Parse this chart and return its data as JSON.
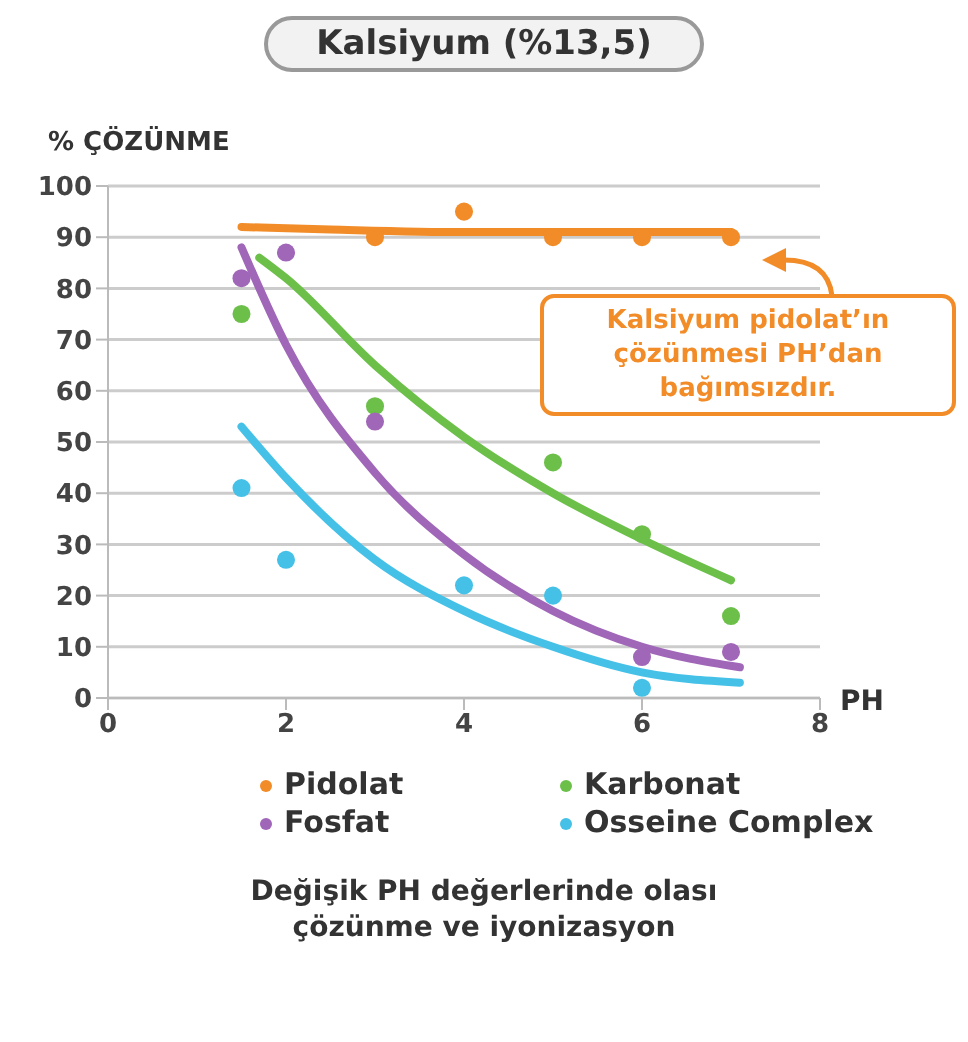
{
  "chart_data": {
    "type": "scatter",
    "title": "Kalsiyum (%13,5)",
    "ylabel": "% ÇÖZÜNME",
    "xlabel": "PH",
    "xlim": [
      0,
      8
    ],
    "xticks": [
      0,
      2,
      4,
      6,
      8
    ],
    "ylim": [
      0,
      100
    ],
    "yticks": [
      0,
      10,
      20,
      30,
      40,
      50,
      60,
      70,
      80,
      90,
      100
    ],
    "grid": "y",
    "legend": "bottom",
    "marker": "circle",
    "line_style": "solid",
    "series": [
      {
        "name": "Pidolat",
        "color": "#f28c28",
        "x": [
          3,
          4,
          5,
          6,
          7
        ],
        "values": [
          90,
          95,
          90,
          90,
          90
        ]
      },
      {
        "name": "Karbonat",
        "color": "#6cc04a",
        "x": [
          1.5,
          3,
          5,
          6,
          7
        ],
        "values": [
          75,
          57,
          46,
          32,
          16
        ]
      },
      {
        "name": "Fosfat",
        "color": "#a066b8",
        "x": [
          1.5,
          2,
          3,
          6,
          7
        ],
        "values": [
          82,
          87,
          54,
          8,
          9
        ]
      },
      {
        "name": "Osseine Complex",
        "color": "#45c1e8",
        "x": [
          1.5,
          2,
          4,
          5,
          6
        ],
        "values": [
          41,
          27,
          22,
          20,
          2
        ]
      },
      {
        "color": "#f28c28",
        "type": "line",
        "marker": "none",
        "x": [
          1.5,
          2.5,
          4,
          5.5,
          7
        ],
        "values": [
          92,
          91.5,
          91,
          91,
          91
        ]
      },
      {
        "color": "#6cc04a",
        "type": "line",
        "marker": "none",
        "x": [
          1.7,
          2,
          3,
          4,
          5,
          6,
          7
        ],
        "values": [
          86,
          82,
          65,
          51,
          40,
          31,
          23
        ]
      },
      {
        "color": "#a066b8",
        "type": "line",
        "marker": "none",
        "x": [
          1.5,
          2,
          3,
          4,
          5,
          6,
          7.1
        ],
        "values": [
          88,
          69,
          44,
          28,
          17,
          10,
          6
        ]
      },
      {
        "color": "#45c1e8",
        "type": "line",
        "marker": "none",
        "x": [
          1.5,
          2,
          3,
          4,
          5,
          6,
          7.1
        ],
        "values": [
          53,
          43,
          27,
          17,
          10,
          5,
          3
        ]
      }
    ],
    "annotations": [
      "Kalsiyum pidolat’ın çözünmesi PH’dan bağımsızdır.",
      "Değişik PH değerlerinde olası çözünme ve iyonizasyon"
    ]
  }
}
